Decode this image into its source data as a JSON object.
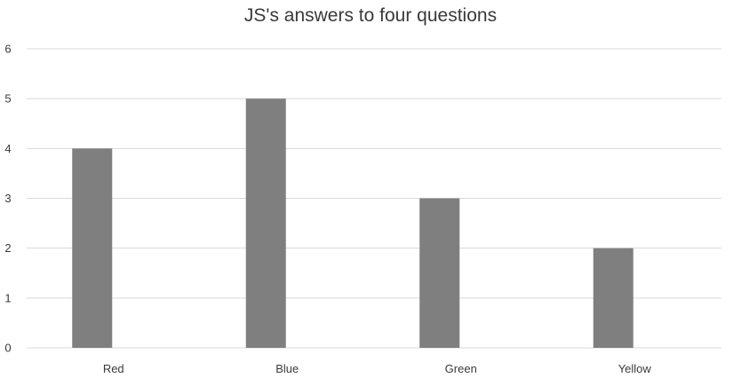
{
  "chart_data": {
    "type": "bar",
    "title": "JS's answers to four questions",
    "xlabel": "",
    "ylabel": "",
    "categories": [
      "Red",
      "Blue",
      "Green",
      "Yellow"
    ],
    "values": [
      4,
      5,
      3,
      2
    ],
    "ylim": [
      0,
      6
    ],
    "yticks": [
      "0",
      "1",
      "2",
      "3",
      "4",
      "5",
      "6"
    ],
    "grid": true,
    "legend": "none",
    "bar_color": "#7f7f7f",
    "grid_color": "#d9d9d9"
  }
}
